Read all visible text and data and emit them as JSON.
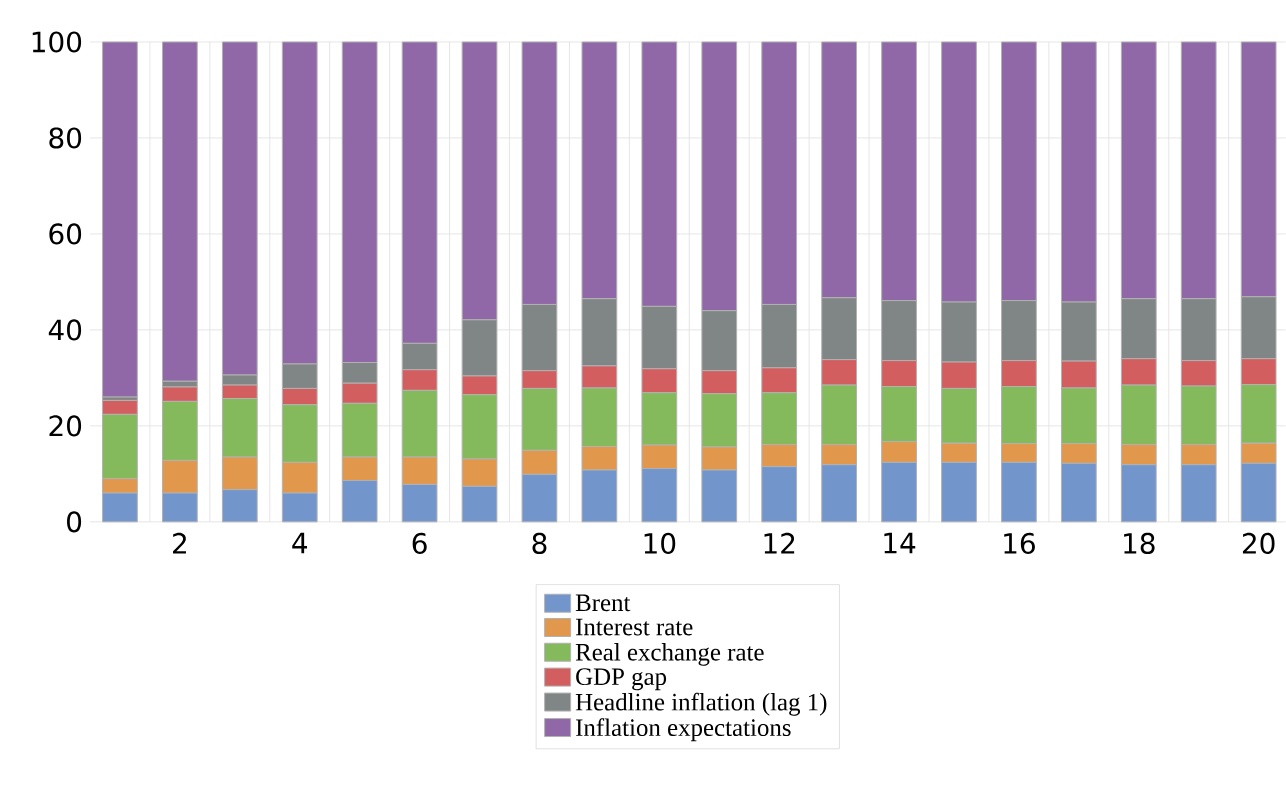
{
  "chart_data": {
    "type": "bar",
    "stacked": true,
    "grid": true,
    "legend": "bottom",
    "categories": [
      null,
      "2",
      null,
      "4",
      null,
      "6",
      null,
      "8",
      null,
      "10",
      null,
      "12",
      null,
      "14",
      null,
      "16",
      null,
      "18",
      null,
      "20"
    ],
    "ylim": [
      0,
      100
    ],
    "yticks": [
      0,
      20,
      40,
      60,
      80,
      100
    ],
    "series": [
      {
        "name": "Brent",
        "color": "#7295cc",
        "values": [
          6.0,
          6.0,
          6.7,
          6.0,
          8.6,
          7.8,
          7.4,
          9.9,
          10.8,
          11.1,
          10.8,
          11.5,
          11.9,
          12.4,
          12.4,
          12.4,
          12.2,
          11.9,
          11.9,
          12.2
        ]
      },
      {
        "name": "Interest rate",
        "color": "#e1974c",
        "values": [
          3.0,
          6.8,
          6.8,
          6.4,
          4.9,
          5.7,
          5.7,
          5.0,
          4.9,
          4.9,
          4.8,
          4.6,
          4.2,
          4.3,
          4.0,
          3.9,
          4.1,
          4.2,
          4.2,
          4.2
        ]
      },
      {
        "name": "Real exchange rate",
        "color": "#84ba5b",
        "values": [
          13.4,
          12.3,
          12.2,
          12.0,
          11.2,
          13.9,
          13.4,
          12.9,
          12.2,
          10.9,
          11.1,
          10.8,
          12.4,
          11.5,
          11.4,
          11.9,
          11.6,
          12.4,
          12.2,
          12.2
        ]
      },
      {
        "name": "GDP gap",
        "color": "#d35e60",
        "values": [
          2.9,
          3.0,
          2.8,
          3.4,
          4.2,
          4.3,
          3.9,
          3.7,
          4.6,
          5.0,
          4.8,
          5.2,
          5.3,
          5.4,
          5.5,
          5.4,
          5.6,
          5.5,
          5.3,
          5.4
        ]
      },
      {
        "name": "Headline inflation (lag 1)",
        "color": "#808585",
        "values": [
          0.7,
          1.2,
          2.1,
          5.1,
          4.3,
          5.5,
          11.7,
          13.8,
          14.0,
          13.0,
          12.5,
          13.2,
          12.9,
          12.5,
          12.5,
          12.5,
          12.3,
          12.5,
          12.9,
          12.9
        ]
      },
      {
        "name": "Inflation expectations",
        "color": "#9067a7",
        "values": [
          74.0,
          70.7,
          69.4,
          67.1,
          66.8,
          62.8,
          57.9,
          54.7,
          53.5,
          55.1,
          56.0,
          54.7,
          53.3,
          53.9,
          54.2,
          53.9,
          54.2,
          53.5,
          53.5,
          53.1
        ]
      }
    ]
  }
}
